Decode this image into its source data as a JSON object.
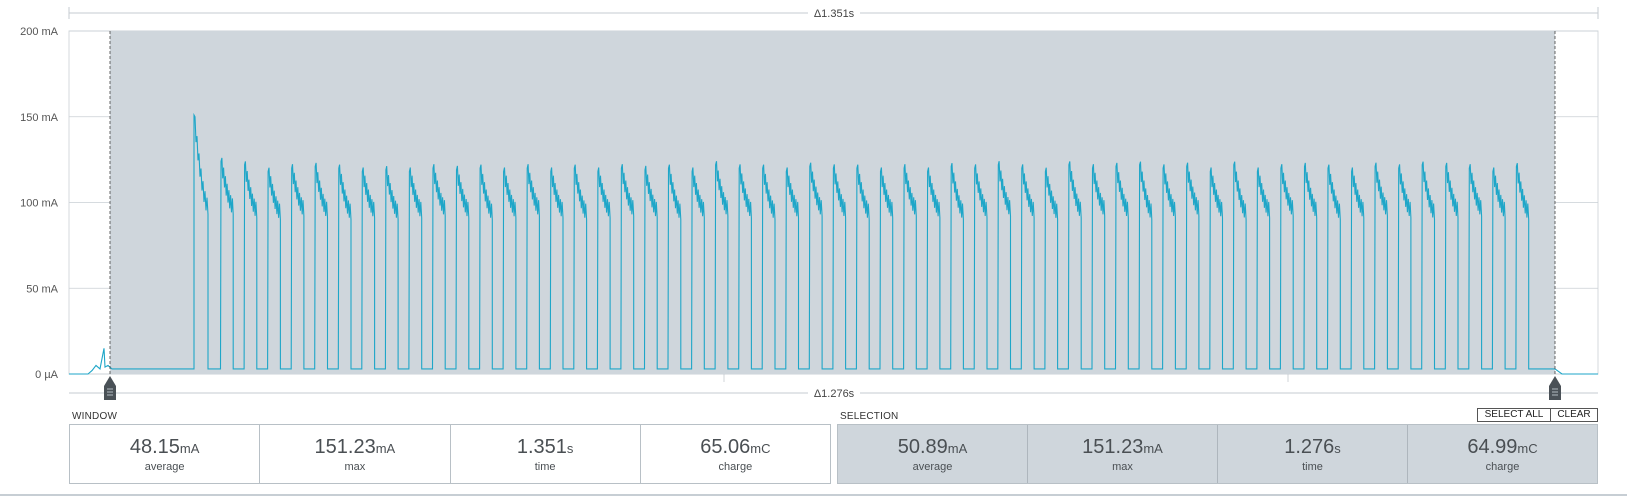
{
  "chart_data": {
    "type": "line",
    "xlabel": "",
    "ylabel": "",
    "y_ticks": [
      "200 mA",
      "150 mA",
      "100 mA",
      "50 mA",
      "0 µA"
    ],
    "ylim": [
      0,
      200
    ],
    "y_unit": "mA",
    "window_delta_label": "Δ1.351s",
    "selection_delta_label": "Δ1.276s",
    "line_color": "#1ea6c8",
    "selection_color": "#cfd6dc",
    "grid": true,
    "baseline_mA": 3,
    "pre_spike_mA": 15,
    "first_peak_mA": 151,
    "pulse_peaks_mA": [
      124,
      122,
      118,
      120,
      121,
      120,
      118,
      119,
      118,
      120,
      119,
      120,
      118,
      120,
      118,
      120,
      118,
      120,
      119,
      120,
      118,
      122,
      120,
      120,
      118,
      121,
      120,
      120,
      118,
      120,
      118,
      121,
      120,
      122,
      120,
      118,
      122,
      120,
      121,
      122,
      120,
      121,
      118,
      122,
      118,
      120,
      121,
      120,
      118,
      121,
      120,
      122,
      121,
      120,
      118,
      121
    ],
    "pulse_tails_mA": [
      97,
      95,
      94,
      96,
      95,
      94,
      95,
      94,
      95,
      96,
      95,
      94,
      95,
      96,
      95,
      94,
      95,
      96,
      95,
      94,
      95,
      96,
      95,
      94,
      95,
      96,
      95,
      94,
      95,
      96,
      95,
      94,
      95,
      96,
      95,
      94,
      95,
      96,
      95,
      94,
      95,
      96,
      95,
      94,
      95,
      96,
      95,
      94,
      95,
      96,
      95,
      94,
      95,
      96,
      95,
      94
    ]
  },
  "window": {
    "label": "WINDOW",
    "average": {
      "value": "48.15",
      "unit": "mA",
      "label": "average"
    },
    "max": {
      "value": "151.23",
      "unit": "mA",
      "label": "max"
    },
    "time": {
      "value": "1.351",
      "unit": "s",
      "label": "time"
    },
    "charge": {
      "value": "65.06",
      "unit": "mC",
      "label": "charge"
    }
  },
  "selection": {
    "label": "SELECTION",
    "select_all_label": "SELECT ALL",
    "clear_label": "CLEAR",
    "average": {
      "value": "50.89",
      "unit": "mA",
      "label": "average"
    },
    "max": {
      "value": "151.23",
      "unit": "mA",
      "label": "max"
    },
    "time": {
      "value": "1.276",
      "unit": "s",
      "label": "time"
    },
    "charge": {
      "value": "64.99",
      "unit": "mC",
      "label": "charge"
    }
  }
}
